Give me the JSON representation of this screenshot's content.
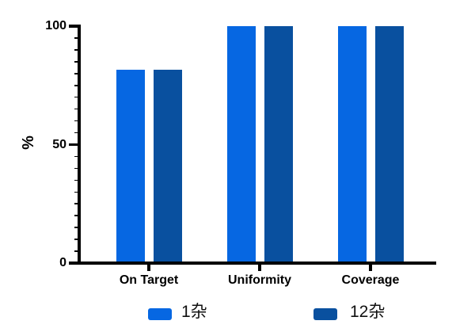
{
  "chart_data": {
    "type": "bar",
    "title": "",
    "categories": [
      "On Target",
      "Uniformity",
      "Coverage"
    ],
    "series": [
      {
        "name": "1杂",
        "color": "#0667E2",
        "values": [
          81.5,
          100,
          100
        ]
      },
      {
        "name": "12杂",
        "color": "#09509F",
        "values": [
          81.5,
          100,
          100
        ]
      }
    ],
    "xlabel": "",
    "ylabel": "%",
    "ylim": [
      0,
      100
    ],
    "yticks": [
      0,
      50,
      100
    ],
    "minor_tick_step": 5,
    "grid": false,
    "legend_position": "bottom",
    "axis_color": "#000000"
  }
}
